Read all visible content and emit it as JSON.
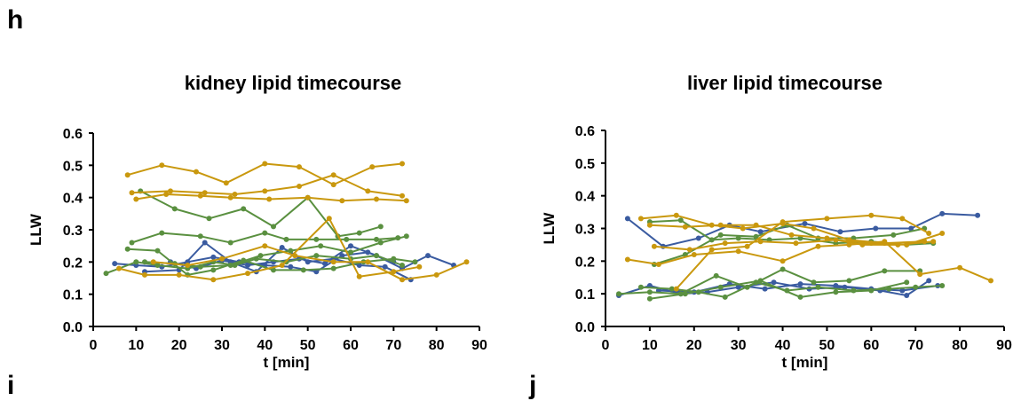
{
  "panel_labels": {
    "h": "h",
    "i": "i",
    "j": "j"
  },
  "series_colors": {
    "blue": "#3a5ba0",
    "green": "#5a9040",
    "gold": "#c9980e"
  },
  "chart_data": [
    {
      "type": "line",
      "title": "kidney lipid timecourse",
      "xlabel": "t [min]",
      "ylabel": "LLW",
      "xlim": [
        0,
        90
      ],
      "ylim": [
        0.0,
        0.6
      ],
      "xticks": [
        "0",
        "10",
        "20",
        "30",
        "40",
        "50",
        "60",
        "70",
        "80",
        "90"
      ],
      "yticks": [
        "0.0",
        "0.1",
        "0.2",
        "0.3",
        "0.4",
        "0.5",
        "0.6"
      ],
      "series": [
        {
          "color": "blue",
          "x": [
            5,
            10,
            16,
            22,
            28,
            34,
            40,
            46,
            52,
            58,
            64,
            70
          ],
          "y": [
            0.195,
            0.19,
            0.185,
            0.2,
            0.215,
            0.2,
            0.19,
            0.185,
            0.17,
            0.22,
            0.23,
            0.2
          ]
        },
        {
          "color": "blue",
          "x": [
            12,
            20,
            26,
            32,
            38,
            44,
            50,
            56,
            62,
            68,
            74
          ],
          "y": [
            0.17,
            0.175,
            0.26,
            0.2,
            0.17,
            0.245,
            0.2,
            0.21,
            0.19,
            0.185,
            0.145
          ]
        },
        {
          "color": "blue",
          "x": [
            18,
            24,
            30,
            36,
            42,
            48,
            54,
            60,
            66,
            72,
            78,
            84
          ],
          "y": [
            0.2,
            0.18,
            0.205,
            0.19,
            0.2,
            0.21,
            0.195,
            0.25,
            0.22,
            0.18,
            0.22,
            0.19
          ]
        },
        {
          "color": "green",
          "x": [
            3,
            10,
            15,
            22,
            28,
            33,
            38,
            45,
            52,
            60,
            66,
            72
          ],
          "y": [
            0.165,
            0.2,
            0.19,
            0.18,
            0.2,
            0.19,
            0.21,
            0.2,
            0.22,
            0.21,
            0.22,
            0.19
          ]
        },
        {
          "color": "green",
          "x": [
            9,
            16,
            25,
            32,
            40,
            45,
            52,
            59,
            66,
            71
          ],
          "y": [
            0.26,
            0.29,
            0.28,
            0.26,
            0.29,
            0.27,
            0.27,
            0.27,
            0.27,
            0.275
          ]
        },
        {
          "color": "green",
          "x": [
            11,
            19,
            27,
            35,
            42,
            50,
            57,
            62,
            67
          ],
          "y": [
            0.42,
            0.365,
            0.335,
            0.365,
            0.31,
            0.4,
            0.28,
            0.29,
            0.31
          ]
        },
        {
          "color": "green",
          "x": [
            8,
            15,
            22,
            28,
            35,
            42,
            49,
            56,
            63,
            70,
            75
          ],
          "y": [
            0.24,
            0.235,
            0.16,
            0.175,
            0.205,
            0.175,
            0.175,
            0.18,
            0.2,
            0.21,
            0.2
          ]
        },
        {
          "color": "green",
          "x": [
            12,
            19,
            25,
            32,
            39,
            46,
            53,
            60,
            67,
            73
          ],
          "y": [
            0.2,
            0.195,
            0.185,
            0.19,
            0.22,
            0.235,
            0.25,
            0.23,
            0.26,
            0.28
          ]
        },
        {
          "color": "gold",
          "x": [
            8,
            16,
            24,
            31,
            40,
            48,
            56,
            65,
            72
          ],
          "y": [
            0.47,
            0.5,
            0.48,
            0.445,
            0.505,
            0.495,
            0.44,
            0.495,
            0.505
          ]
        },
        {
          "color": "gold",
          "x": [
            9,
            18,
            26,
            33,
            40,
            48,
            56,
            64,
            72
          ],
          "y": [
            0.415,
            0.42,
            0.415,
            0.41,
            0.42,
            0.435,
            0.47,
            0.42,
            0.405
          ]
        },
        {
          "color": "gold",
          "x": [
            10,
            17,
            25,
            32,
            41,
            50,
            58,
            66,
            73
          ],
          "y": [
            0.395,
            0.41,
            0.405,
            0.4,
            0.395,
            0.4,
            0.39,
            0.395,
            0.39
          ]
        },
        {
          "color": "gold",
          "x": [
            6,
            12,
            20,
            28,
            36,
            44,
            55,
            62,
            70,
            76
          ],
          "y": [
            0.18,
            0.16,
            0.16,
            0.145,
            0.165,
            0.19,
            0.335,
            0.155,
            0.17,
            0.185
          ]
        },
        {
          "color": "gold",
          "x": [
            14,
            22,
            30,
            40,
            47,
            56,
            64,
            72,
            80,
            87
          ],
          "y": [
            0.2,
            0.19,
            0.21,
            0.25,
            0.22,
            0.2,
            0.2,
            0.145,
            0.16,
            0.2
          ]
        }
      ]
    },
    {
      "type": "line",
      "title": "liver lipid timecourse",
      "xlabel": "t [min]",
      "ylabel": "LLW",
      "xlim": [
        0,
        90
      ],
      "ylim": [
        0.0,
        0.6
      ],
      "xticks": [
        "0",
        "10",
        "20",
        "30",
        "40",
        "50",
        "60",
        "70",
        "80",
        "90"
      ],
      "yticks": [
        "0.0",
        "0.1",
        "0.2",
        "0.3",
        "0.4",
        "0.5",
        "0.6"
      ],
      "series": [
        {
          "color": "blue",
          "x": [
            5,
            13,
            21,
            28,
            35,
            45,
            53,
            61,
            69,
            76,
            84
          ],
          "y": [
            0.33,
            0.245,
            0.27,
            0.31,
            0.29,
            0.315,
            0.29,
            0.3,
            0.3,
            0.345,
            0.34
          ]
        },
        {
          "color": "blue",
          "x": [
            3,
            10,
            17,
            23,
            30,
            38,
            46,
            54,
            62,
            68,
            73
          ],
          "y": [
            0.095,
            0.125,
            0.1,
            0.105,
            0.12,
            0.135,
            0.115,
            0.12,
            0.11,
            0.095,
            0.14
          ]
        },
        {
          "color": "blue",
          "x": [
            12,
            20,
            28,
            36,
            44,
            52,
            60,
            67,
            75
          ],
          "y": [
            0.11,
            0.105,
            0.13,
            0.115,
            0.13,
            0.125,
            0.115,
            0.11,
            0.125
          ]
        },
        {
          "color": "green",
          "x": [
            10,
            17,
            24,
            30,
            37,
            44,
            52,
            60,
            68,
            74
          ],
          "y": [
            0.32,
            0.325,
            0.265,
            0.27,
            0.265,
            0.27,
            0.255,
            0.26,
            0.25,
            0.255
          ]
        },
        {
          "color": "green",
          "x": [
            11,
            18,
            26,
            34,
            41,
            48,
            56,
            65,
            72
          ],
          "y": [
            0.19,
            0.22,
            0.28,
            0.275,
            0.31,
            0.27,
            0.27,
            0.28,
            0.3
          ]
        },
        {
          "color": "green",
          "x": [
            3,
            10,
            17,
            25,
            32,
            40,
            47,
            55,
            63,
            71
          ],
          "y": [
            0.1,
            0.105,
            0.1,
            0.155,
            0.12,
            0.175,
            0.135,
            0.14,
            0.17,
            0.17
          ]
        },
        {
          "color": "green",
          "x": [
            8,
            15,
            21,
            27,
            34,
            41,
            48,
            56,
            64,
            70,
            76
          ],
          "y": [
            0.12,
            0.115,
            0.105,
            0.09,
            0.135,
            0.11,
            0.12,
            0.11,
            0.115,
            0.12,
            0.125
          ]
        },
        {
          "color": "green",
          "x": [
            10,
            18,
            26,
            35,
            44,
            52,
            60,
            68
          ],
          "y": [
            0.085,
            0.1,
            0.12,
            0.14,
            0.09,
            0.105,
            0.11,
            0.135
          ]
        },
        {
          "color": "gold",
          "x": [
            8,
            16,
            24,
            31,
            40,
            47,
            55,
            63,
            72
          ],
          "y": [
            0.33,
            0.34,
            0.31,
            0.3,
            0.315,
            0.3,
            0.265,
            0.255,
            0.26
          ]
        },
        {
          "color": "gold",
          "x": [
            10,
            18,
            26,
            34,
            42,
            50,
            58,
            66,
            74
          ],
          "y": [
            0.31,
            0.305,
            0.31,
            0.31,
            0.28,
            0.27,
            0.25,
            0.25,
            0.26
          ]
        },
        {
          "color": "gold",
          "x": [
            11,
            19,
            27,
            35,
            43,
            52,
            60,
            68,
            76
          ],
          "y": [
            0.245,
            0.235,
            0.255,
            0.26,
            0.255,
            0.265,
            0.255,
            0.25,
            0.285
          ]
        },
        {
          "color": "gold",
          "x": [
            5,
            12,
            20,
            30,
            40,
            48,
            55,
            63,
            71,
            80,
            87
          ],
          "y": [
            0.205,
            0.19,
            0.22,
            0.23,
            0.2,
            0.245,
            0.25,
            0.26,
            0.16,
            0.18,
            0.14
          ]
        },
        {
          "color": "gold",
          "x": [
            16,
            24,
            32,
            40,
            50,
            60,
            67,
            73
          ],
          "y": [
            0.115,
            0.235,
            0.245,
            0.32,
            0.33,
            0.34,
            0.33,
            0.285
          ]
        }
      ]
    }
  ]
}
